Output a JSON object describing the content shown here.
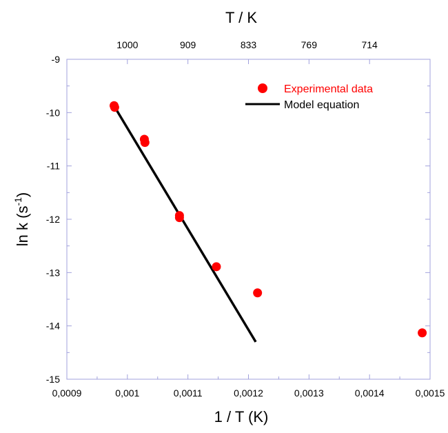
{
  "chart_data": {
    "type": "scatter",
    "xlabel": "1 / T (K)",
    "ylabel_main": "ln k (s",
    "ylabel_sup": "-1",
    "ylabel_close": ")",
    "top_axis_label": "T / K",
    "xlim": [
      0.0009,
      0.0015
    ],
    "ylim": [
      -15,
      -9
    ],
    "x_ticks": [
      0.0009,
      0.001,
      0.0011,
      0.0012,
      0.0013,
      0.0014,
      0.0015
    ],
    "x_tick_labels": [
      "0,0009",
      "0,001",
      "0,0011",
      "0,0012",
      "0,0013",
      "0,0014",
      "0,0015"
    ],
    "y_ticks": [
      -15,
      -14,
      -13,
      -12,
      -11,
      -10,
      -9
    ],
    "y_tick_labels": [
      "-15",
      "-14",
      "-13",
      "-12",
      "-11",
      "-10",
      "-9"
    ],
    "top_ticks": [
      {
        "x": 0.001,
        "label": "1000"
      },
      {
        "x": 0.0011,
        "label": "909"
      },
      {
        "x": 0.0012,
        "label": "833"
      },
      {
        "x": 0.0013,
        "label": "769"
      },
      {
        "x": 0.0014,
        "label": "714"
      }
    ],
    "grid": false,
    "legend_position": "top-right",
    "series": [
      {
        "name": "Experimental data",
        "kind": "scatter",
        "color": "#ff0000",
        "points": [
          [
            0.000978,
            -9.87
          ],
          [
            0.000979,
            -9.9
          ],
          [
            0.001028,
            -10.5
          ],
          [
            0.001029,
            -10.56
          ],
          [
            0.001086,
            -11.93
          ],
          [
            0.001086,
            -11.97
          ],
          [
            0.001147,
            -12.89
          ],
          [
            0.001215,
            -13.38
          ],
          [
            0.001487,
            -14.13
          ]
        ]
      },
      {
        "name": "Model equation",
        "kind": "line",
        "color": "#000000",
        "points": [
          [
            0.000982,
            -9.95
          ],
          [
            0.001212,
            -14.3
          ]
        ]
      }
    ]
  },
  "colors": {
    "frame": "#a0a0dc",
    "scatter": "#ff0000",
    "line": "#000000"
  }
}
